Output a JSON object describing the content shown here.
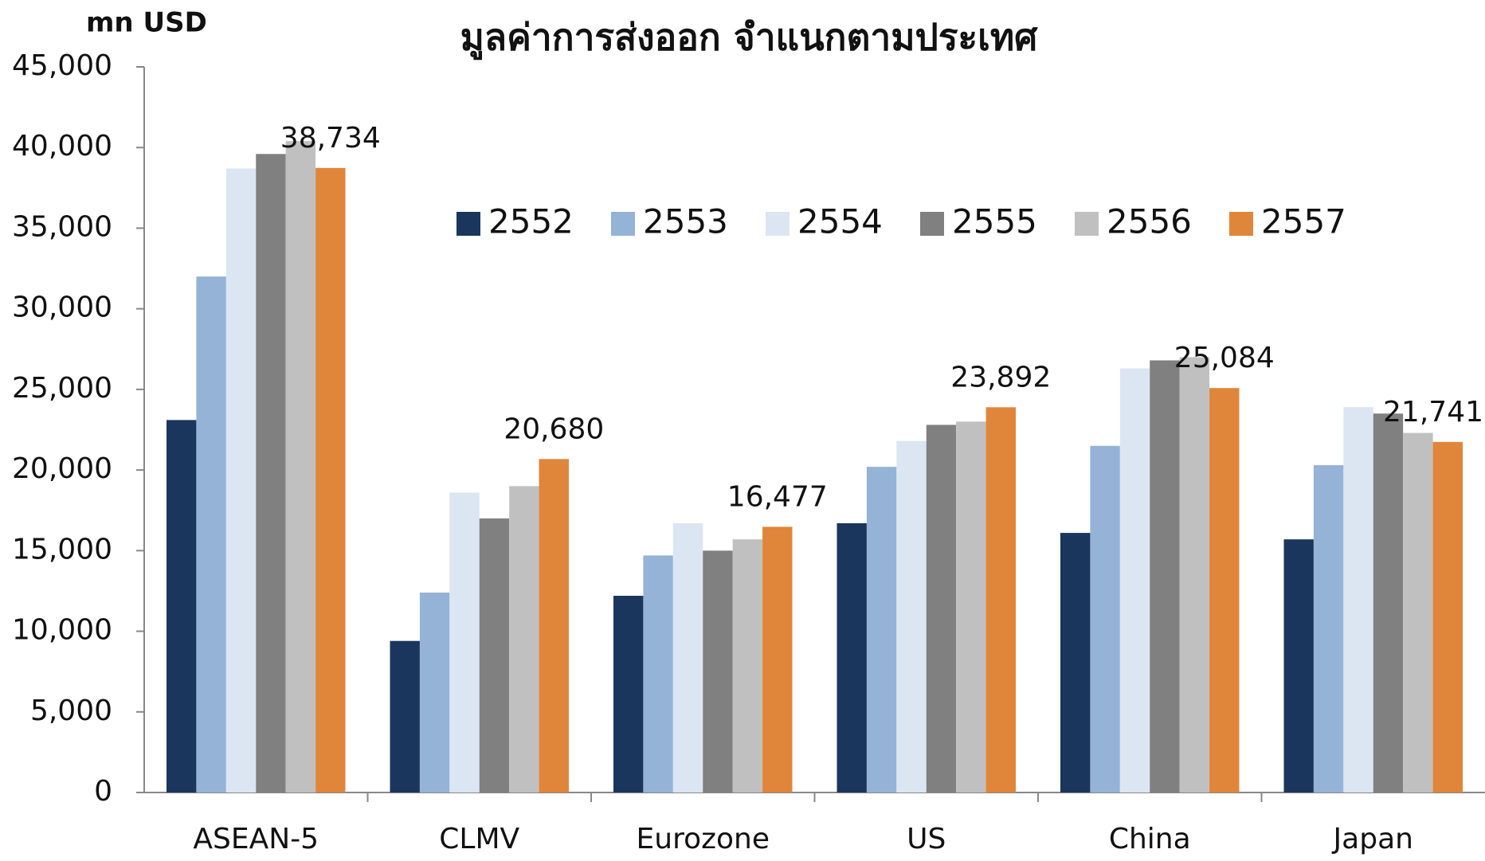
{
  "chart_data": {
    "type": "bar",
    "title": "มูลค่าการส่งออก จำแนกตามประเทศ",
    "y_axis_label": "mn USD",
    "categories": [
      "ASEAN-5",
      "CLMV",
      "Eurozone",
      "US",
      "China",
      "Japan"
    ],
    "series": [
      {
        "name": "2552",
        "color": "#1b365d",
        "values": [
          23100,
          9400,
          12200,
          16700,
          16100,
          15700
        ]
      },
      {
        "name": "2553",
        "color": "#95b3d7",
        "values": [
          32000,
          12400,
          14700,
          20200,
          21500,
          20300
        ]
      },
      {
        "name": "2554",
        "color": "#dce6f2",
        "values": [
          38700,
          18600,
          16700,
          21800,
          26300,
          23900
        ]
      },
      {
        "name": "2555",
        "color": "#808080",
        "values": [
          39600,
          17000,
          15000,
          22800,
          26800,
          23500
        ]
      },
      {
        "name": "2556",
        "color": "#c0c0c0",
        "values": [
          40400,
          19000,
          15700,
          23000,
          27000,
          22300
        ]
      },
      {
        "name": "2557",
        "color": "#e0863a",
        "values": [
          38734,
          20680,
          16477,
          23892,
          25084,
          21741
        ],
        "value_labels": [
          "38,734",
          "20,680",
          "16,477",
          "23,892",
          "25,084",
          "21,741"
        ]
      }
    ],
    "ylim": [
      0,
      45000
    ],
    "yticks": [
      0,
      {
        "value": 5000,
        "label": "5,000"
      },
      {
        "value": 10000,
        "label": "10,000"
      },
      {
        "value": 15000,
        "label": "15,000"
      },
      {
        "value": 20000,
        "label": "20,000"
      },
      {
        "value": 25000,
        "label": "25,000"
      },
      {
        "value": 30000,
        "label": "30,000"
      },
      {
        "value": 35000,
        "label": "35,000"
      },
      {
        "value": 40000,
        "label": "40,000"
      },
      {
        "value": 45000,
        "label": "45,000"
      }
    ],
    "grid": false
  }
}
